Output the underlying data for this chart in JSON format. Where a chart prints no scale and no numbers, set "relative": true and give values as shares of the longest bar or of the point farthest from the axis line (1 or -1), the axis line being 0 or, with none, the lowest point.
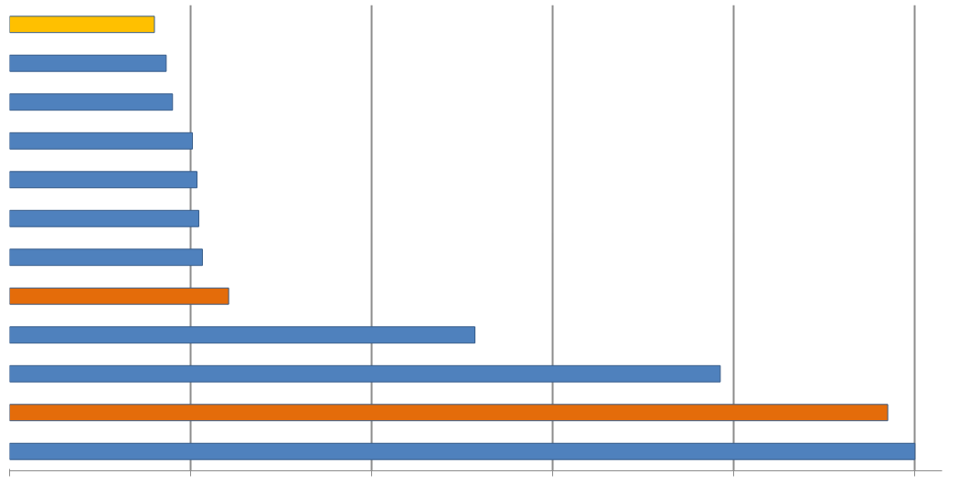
{
  "chart_data": {
    "type": "bar",
    "orientation": "horizontal",
    "relative": true,
    "grid": "x",
    "categories": [
      null,
      null,
      null,
      null,
      null,
      null,
      null,
      null,
      null,
      null,
      null,
      null
    ],
    "values": [
      0.16,
      0.173,
      0.18,
      0.202,
      0.207,
      0.209,
      0.213,
      0.242,
      0.514,
      0.785,
      0.97,
      1
    ],
    "colors": [
      "#ffc000",
      "#4f81bd",
      "#4f81bd",
      "#4f81bd",
      "#4f81bd",
      "#4f81bd",
      "#4f81bd",
      "#e46c0a",
      "#4f81bd",
      "#4f81bd",
      "#e46c0a",
      "#4f81bd"
    ]
  }
}
